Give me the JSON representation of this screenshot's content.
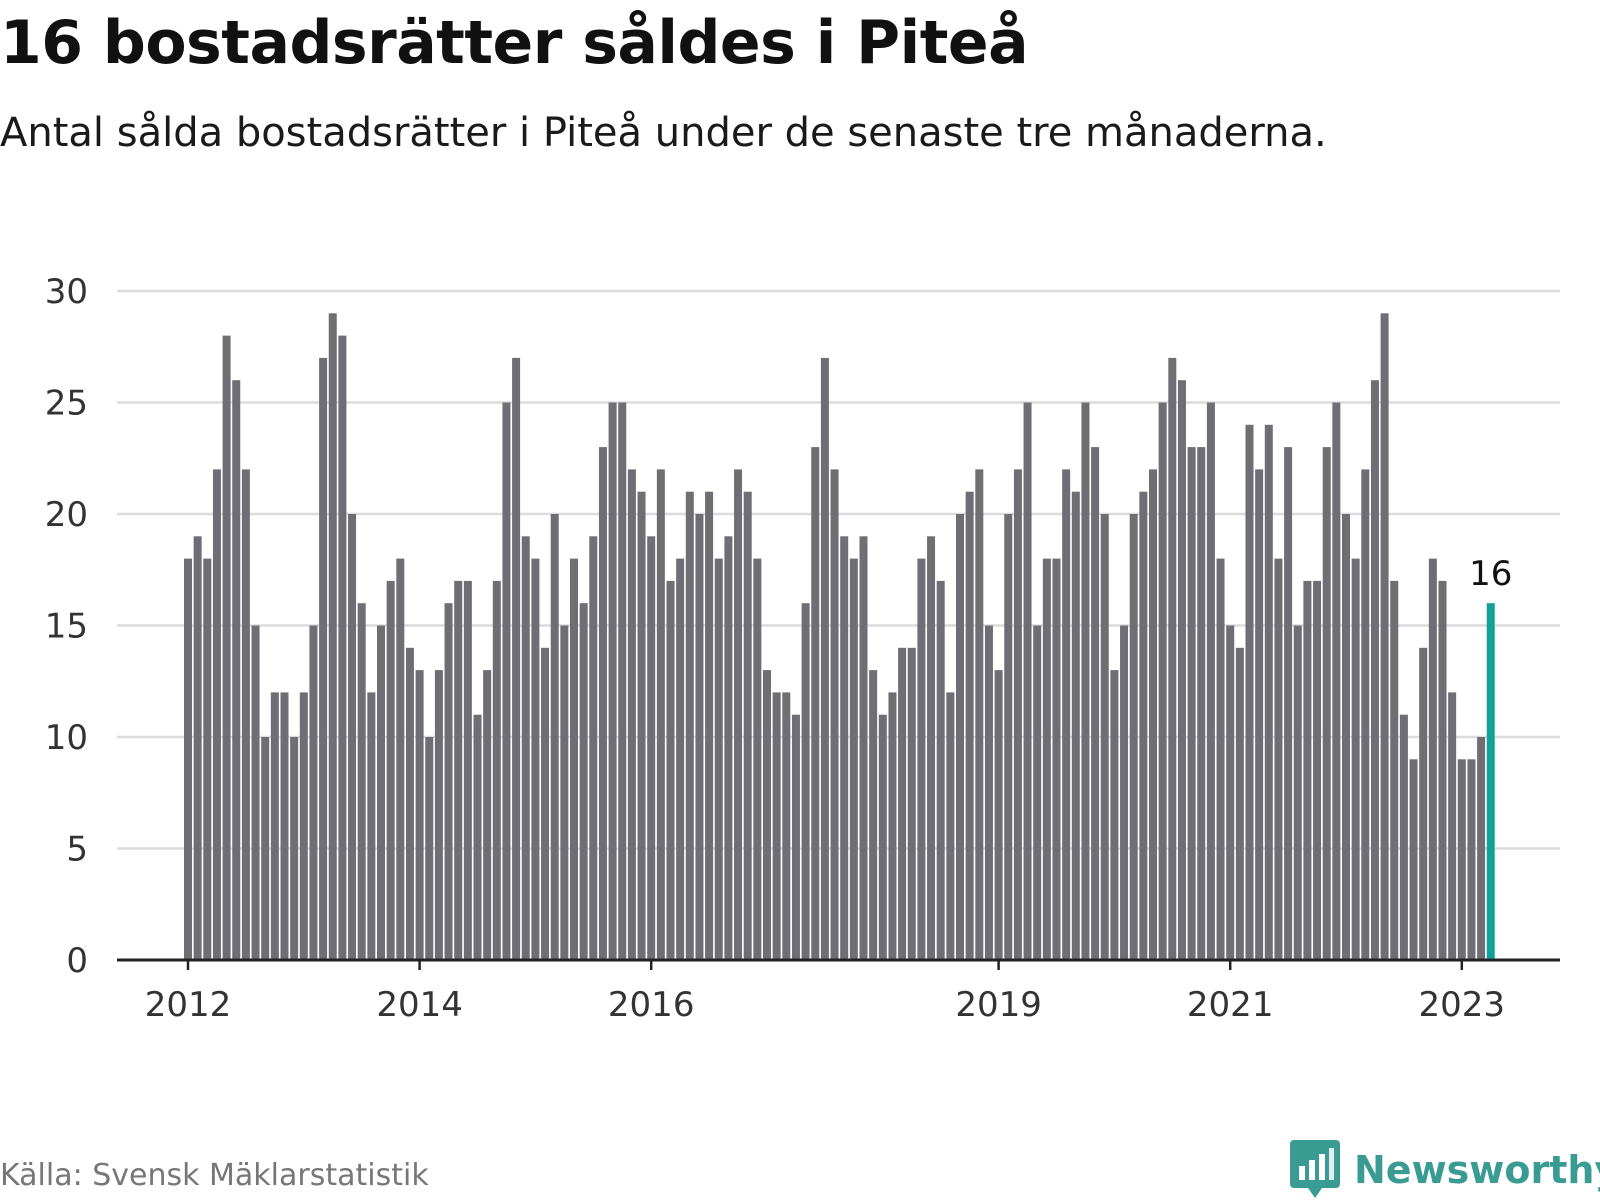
{
  "header": {
    "title": "16 bostadsrätter såldes i Piteå",
    "subtitle": "Antal sålda bostadsrätter i Piteå under de senaste tre månaderna."
  },
  "footer": {
    "source": "Källa: Svensk Mäklarstatistik",
    "brand": "Newsworthy",
    "brand_icon": "bar-chart-speech-bubble-icon"
  },
  "colors": {
    "bar": "#6f6e75",
    "highlight": "#12a197",
    "grid": "#dcdcdc",
    "axis": "#222222",
    "brand": "#3a9b92"
  },
  "chart_data": {
    "type": "bar",
    "title": "16 bostadsrätter såldes i Piteå",
    "subtitle": "Antal sålda bostadsrätter i Piteå under de senaste tre månaderna.",
    "xlabel": "",
    "ylabel": "",
    "ylim": [
      0,
      30
    ],
    "yticks": [
      0,
      5,
      10,
      15,
      20,
      25,
      30
    ],
    "grid": true,
    "x_tick_labels": [
      {
        "label": "2012",
        "index": 0
      },
      {
        "label": "2014",
        "index": 24
      },
      {
        "label": "2016",
        "index": 48
      },
      {
        "label": "2019",
        "index": 84
      },
      {
        "label": "2021",
        "index": 108
      },
      {
        "label": "2023",
        "index": 132
      }
    ],
    "highlight_index": 135,
    "highlight_label": "16",
    "values": [
      18,
      19,
      18,
      22,
      28,
      26,
      22,
      15,
      10,
      12,
      12,
      10,
      12,
      15,
      27,
      29,
      28,
      20,
      16,
      12,
      15,
      17,
      18,
      14,
      13,
      10,
      13,
      16,
      17,
      17,
      11,
      13,
      17,
      25,
      27,
      19,
      18,
      14,
      20,
      15,
      18,
      16,
      19,
      23,
      25,
      25,
      22,
      21,
      19,
      22,
      17,
      18,
      21,
      20,
      21,
      18,
      19,
      22,
      21,
      18,
      13,
      12,
      12,
      11,
      16,
      23,
      27,
      22,
      19,
      18,
      19,
      13,
      11,
      12,
      14,
      14,
      18,
      19,
      17,
      12,
      20,
      21,
      22,
      15,
      13,
      20,
      22,
      25,
      15,
      18,
      18,
      22,
      21,
      25,
      23,
      20,
      13,
      15,
      20,
      21,
      22,
      25,
      27,
      26,
      23,
      23,
      25,
      18,
      15,
      14,
      24,
      22,
      24,
      18,
      23,
      15,
      17,
      17,
      23,
      25,
      20,
      18,
      22,
      26,
      29,
      17,
      11,
      9,
      14,
      18,
      17,
      12,
      9,
      9,
      10,
      16
    ]
  }
}
